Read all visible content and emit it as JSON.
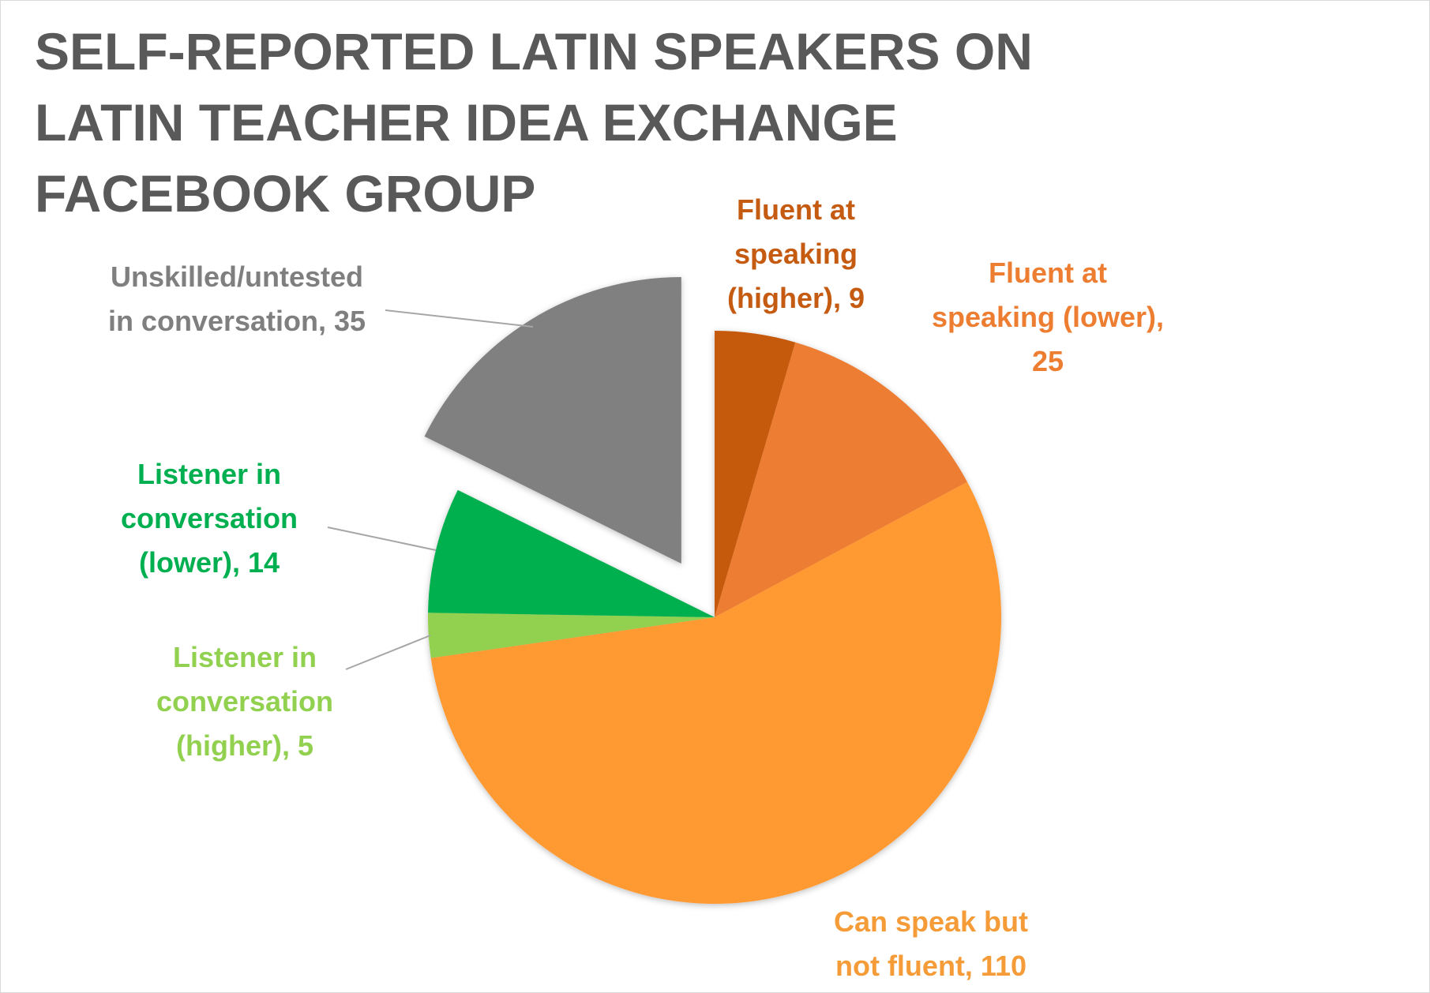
{
  "chart_data": {
    "type": "pie",
    "title_lines": [
      "SELF-REPORTED LATIN SPEAKERS ON",
      "LATIN TEACHER IDEA EXCHANGE",
      "FACEBOOK GROUP"
    ],
    "title": "SELF-REPORTED LATIN SPEAKERS ON LATIN TEACHER IDEA EXCHANGE FACEBOOK GROUP",
    "start_angle_deg": 0,
    "direction": "clockwise",
    "slices": [
      {
        "name": "Fluent at speaking (higher)",
        "value": 9,
        "color": "#c55a11",
        "label_lines": [
          "Fluent at",
          "speaking",
          "(higher), 9"
        ],
        "exploded": false
      },
      {
        "name": "Fluent at speaking (lower)",
        "value": 25,
        "color": "#ed7d31",
        "label_lines": [
          "Fluent at",
          "speaking (lower),",
          "25"
        ],
        "exploded": false
      },
      {
        "name": "Can speak but not fluent",
        "value": 110,
        "color": "#ff9933",
        "label_lines": [
          "Can speak but",
          "not fluent, 110"
        ],
        "exploded": false
      },
      {
        "name": "Listener in conversation (higher)",
        "value": 5,
        "color": "#92d050",
        "label_lines": [
          "Listener in",
          "conversation",
          "(higher), 5"
        ],
        "exploded": false
      },
      {
        "name": "Listener in conversation (lower)",
        "value": 14,
        "color": "#00b050",
        "label_lines": [
          "Listener in",
          "conversation",
          "(lower), 14"
        ],
        "exploded": false
      },
      {
        "name": "Unskilled/untested in conversation",
        "value": 35,
        "color": "#808080",
        "label_lines": [
          "Unskilled/untested",
          "in conversation, 35"
        ],
        "exploded": true
      }
    ],
    "label_colors": [
      "#c55a11",
      "#ed7d31",
      "#f59c38",
      "#92d050",
      "#00b050",
      "#7f7f7f"
    ],
    "legend": "none"
  }
}
